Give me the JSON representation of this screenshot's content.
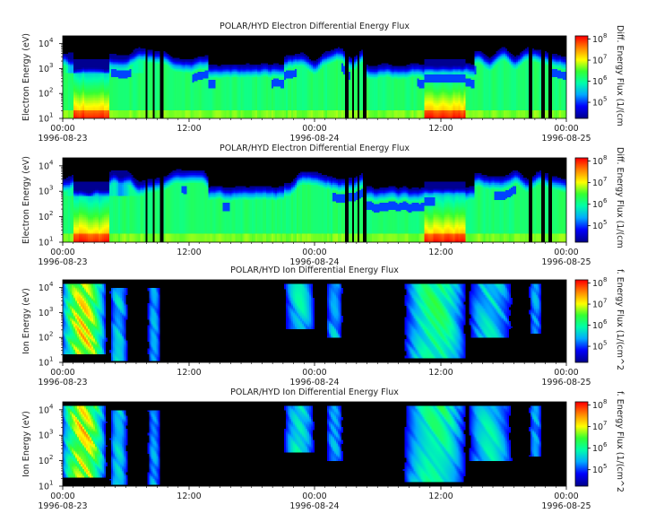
{
  "chart_data": [
    {
      "type": "heatmap",
      "title": "POLAR/HYD  Electron Differential Energy Flux",
      "ylabel": "Electron Energy (eV)",
      "colorbar_label": "Diff. Energy Flux (1/(cm",
      "x_ticks": [
        {
          "time": "00:00",
          "date": "1996-08-23"
        },
        {
          "time": "12:00",
          "date": ""
        },
        {
          "time": "00:00",
          "date": "1996-08-24"
        },
        {
          "time": "12:00",
          "date": ""
        },
        {
          "time": "00:00",
          "date": "1996-08-25"
        }
      ],
      "y_scale": "log",
      "ylim_eV": [
        10,
        20000
      ],
      "y_ticks": [
        "10",
        "10",
        "10",
        "10"
      ],
      "y_tick_exponents": [
        "1",
        "2",
        "3",
        "4"
      ],
      "colorbar_scale": "log",
      "colorbar_ticks": [
        "10",
        "10",
        "10",
        "10"
      ],
      "colorbar_tick_exponents": [
        "5",
        "6",
        "7",
        "8"
      ],
      "colormap": [
        "#000090",
        "#0000ff",
        "#00aaff",
        "#00ffaa",
        "#33ff33",
        "#ffff00",
        "#ff8800",
        "#ff0000"
      ],
      "background_color": "#000000"
    },
    {
      "type": "heatmap",
      "title": "POLAR/HYD  Electron Differential Energy Flux",
      "ylabel": "Electron Energy (eV)",
      "colorbar_label": "Diff. Energy Flux (1/(cm",
      "x_ticks": [
        {
          "time": "00:00",
          "date": "1996-08-23"
        },
        {
          "time": "12:00",
          "date": ""
        },
        {
          "time": "00:00",
          "date": "1996-08-24"
        },
        {
          "time": "12:00",
          "date": ""
        },
        {
          "time": "00:00",
          "date": "1996-08-25"
        }
      ],
      "y_scale": "log",
      "ylim_eV": [
        10,
        20000
      ],
      "y_ticks": [
        "10",
        "10",
        "10",
        "10"
      ],
      "y_tick_exponents": [
        "1",
        "2",
        "3",
        "4"
      ],
      "colorbar_scale": "log",
      "colorbar_ticks": [
        "10",
        "10",
        "10",
        "10"
      ],
      "colorbar_tick_exponents": [
        "5",
        "6",
        "7",
        "8"
      ],
      "colormap": [
        "#000090",
        "#0000ff",
        "#00aaff",
        "#00ffaa",
        "#33ff33",
        "#ffff00",
        "#ff8800",
        "#ff0000"
      ],
      "background_color": "#000000"
    },
    {
      "type": "heatmap",
      "title": "POLAR/HYD  Ion Differential Energy Flux",
      "ylabel": "Ion Energy (eV)",
      "colorbar_label": "f. Energy Flux (1/(cm^2",
      "x_ticks": [
        {
          "time": "00:00",
          "date": "1996-08-23"
        },
        {
          "time": "12:00",
          "date": ""
        },
        {
          "time": "00:00",
          "date": "1996-08-24"
        },
        {
          "time": "12:00",
          "date": ""
        },
        {
          "time": "00:00",
          "date": "1996-08-25"
        }
      ],
      "y_scale": "log",
      "ylim_eV": [
        10,
        20000
      ],
      "y_ticks": [
        "10",
        "10",
        "10",
        "10"
      ],
      "y_tick_exponents": [
        "1",
        "2",
        "3",
        "4"
      ],
      "colorbar_scale": "log",
      "colorbar_ticks": [
        "10",
        "10",
        "10",
        "10"
      ],
      "colorbar_tick_exponents": [
        "5",
        "6",
        "7",
        "8"
      ],
      "colormap": [
        "#000090",
        "#0000ff",
        "#00aaff",
        "#00ffaa",
        "#33ff33",
        "#ffff00",
        "#ff8800",
        "#ff0000"
      ],
      "background_color": "#000000"
    },
    {
      "type": "heatmap",
      "title": "POLAR/HYD  Ion Differential Energy Flux",
      "ylabel": "Ion Energy (eV)",
      "colorbar_label": "f. Energy Flux (1/(cm^2",
      "x_ticks": [
        {
          "time": "00:00",
          "date": "1996-08-23"
        },
        {
          "time": "12:00",
          "date": ""
        },
        {
          "time": "00:00",
          "date": "1996-08-24"
        },
        {
          "time": "12:00",
          "date": ""
        },
        {
          "time": "00:00",
          "date": "1996-08-25"
        }
      ],
      "y_scale": "log",
      "ylim_eV": [
        10,
        20000
      ],
      "y_ticks": [
        "10",
        "10",
        "10",
        "10"
      ],
      "y_tick_exponents": [
        "1",
        "2",
        "3",
        "4"
      ],
      "colorbar_scale": "log",
      "colorbar_ticks": [
        "10",
        "10",
        "10",
        "10"
      ],
      "colorbar_tick_exponents": [
        "5",
        "6",
        "7",
        "8"
      ],
      "colormap": [
        "#000090",
        "#0000ff",
        "#00aaff",
        "#00ffaa",
        "#33ff33",
        "#ffff00",
        "#ff8800",
        "#ff0000"
      ],
      "background_color": "#000000"
    }
  ]
}
